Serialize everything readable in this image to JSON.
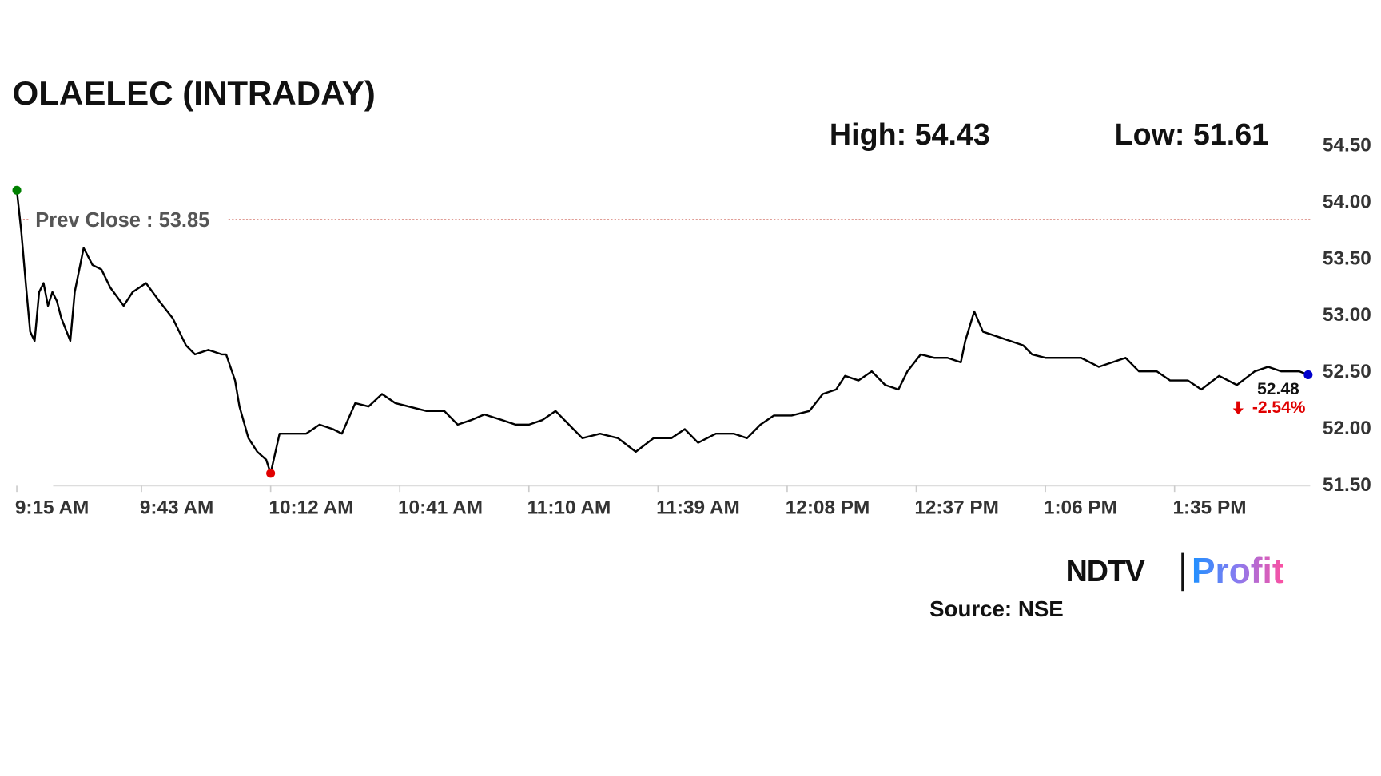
{
  "chart_data": {
    "type": "line",
    "title": "OLAELEC (INTRADAY)",
    "high_label": "High:",
    "high": 54.43,
    "low_label": "Low:",
    "low": 51.61,
    "prev_close_label": "Prev Close :",
    "prev_close": 53.85,
    "last_change": {
      "value": -2.54,
      "label": "-2.54%"
    },
    "x": [
      "9:15 AM",
      "9:16 AM",
      "9:17 AM",
      "9:18 AM",
      "9:19 AM",
      "9:20 AM",
      "9:21 AM",
      "9:22 AM",
      "9:23 AM",
      "9:24 AM",
      "9:25 AM",
      "9:27 AM",
      "9:28 AM",
      "9:30 AM",
      "9:32 AM",
      "9:34 AM",
      "9:36 AM",
      "9:39 AM",
      "9:41 AM",
      "9:44 AM",
      "9:47 AM",
      "9:50 AM",
      "9:53 AM",
      "9:55 AM",
      "9:58 AM",
      "10:01 AM",
      "10:02 AM",
      "10:04 AM",
      "10:05 AM",
      "10:07 AM",
      "10:09 AM",
      "10:11 AM",
      "10:12 AM",
      "10:14 AM",
      "10:17 AM",
      "10:20 AM",
      "10:23 AM",
      "10:26 AM",
      "10:28 AM",
      "10:31 AM",
      "10:34 AM",
      "10:37 AM",
      "10:40 AM",
      "10:43 AM",
      "10:47 AM",
      "10:51 AM",
      "10:54 AM",
      "10:57 AM",
      "11:00 AM",
      "11:04 AM",
      "11:07 AM",
      "11:10 AM",
      "11:13 AM",
      "11:16 AM",
      "11:19 AM",
      "11:22 AM",
      "11:26 AM",
      "11:30 AM",
      "11:34 AM",
      "11:38 AM",
      "11:42 AM",
      "11:45 AM",
      "11:48 AM",
      "11:52 AM",
      "11:56 AM",
      "11:59 AM",
      "12:02 PM",
      "12:05 PM",
      "12:09 PM",
      "12:13 PM",
      "12:16 PM",
      "12:19 PM",
      "12:21 PM",
      "12:24 PM",
      "12:27 PM",
      "12:30 PM",
      "12:33 PM",
      "12:35 PM",
      "12:38 PM",
      "12:41 PM",
      "12:44 PM",
      "12:47 PM",
      "12:48 PM",
      "12:50 PM",
      "12:52 PM",
      "12:55 PM",
      "12:58 PM",
      "1:01 PM",
      "1:03 PM",
      "1:06 PM",
      "1:10 PM",
      "1:14 PM",
      "1:18 PM",
      "1:21 PM",
      "1:24 PM",
      "1:27 PM",
      "1:31 PM",
      "1:34 PM",
      "1:38 PM",
      "1:41 PM",
      "1:45 PM",
      "1:49 PM",
      "1:53 PM",
      "1:56 PM",
      "1:59 PM",
      "2:03 PM",
      "2:05 PM"
    ],
    "series": [
      {
        "color": "#000000",
        "values": [
          54.11,
          53.75,
          53.29,
          52.86,
          52.78,
          53.21,
          53.29,
          53.09,
          53.21,
          53.13,
          52.98,
          52.78,
          53.21,
          53.6,
          53.45,
          53.41,
          53.25,
          53.09,
          53.21,
          53.29,
          53.13,
          52.98,
          52.74,
          52.66,
          52.7,
          52.66,
          52.66,
          52.43,
          52.2,
          51.92,
          51.8,
          51.73,
          51.61,
          51.96,
          51.96,
          51.96,
          52.04,
          52.0,
          51.96,
          52.23,
          52.2,
          52.31,
          52.23,
          52.2,
          52.16,
          52.16,
          52.04,
          52.08,
          52.13,
          52.08,
          52.04,
          52.04,
          52.08,
          52.16,
          52.04,
          51.92,
          51.96,
          51.92,
          51.8,
          51.92,
          51.92,
          52.0,
          51.88,
          51.96,
          51.96,
          51.92,
          52.04,
          52.12,
          52.12,
          52.16,
          52.31,
          52.35,
          52.47,
          52.43,
          52.51,
          52.39,
          52.35,
          52.51,
          52.66,
          52.63,
          52.63,
          52.59,
          52.78,
          53.04,
          52.86,
          52.82,
          52.78,
          52.74,
          52.66,
          52.63,
          52.63,
          52.63,
          52.55,
          52.59,
          52.63,
          52.51,
          52.51,
          52.43,
          52.43,
          52.35,
          52.47,
          52.39,
          52.51,
          52.55,
          52.51,
          52.51,
          52.48
        ]
      }
    ],
    "marker_colors": {
      "start": "#008000",
      "low": "#e00000",
      "end": "#0000cc"
    },
    "prev_close_color": "#c0392b",
    "change_color": "#e00000",
    "xticks": [
      "9:15 AM",
      "9:43 AM",
      "10:12 AM",
      "10:41 AM",
      "11:10 AM",
      "11:39 AM",
      "12:08 PM",
      "12:37 PM",
      "1:06 PM",
      "1:35 PM"
    ],
    "ylim": [
      51.5,
      54.5
    ],
    "yticks": [
      {
        "value": 51.5,
        "label": "51.50"
      },
      {
        "value": 52,
        "label": "52.00"
      },
      {
        "value": 52.5,
        "label": "52.50"
      },
      {
        "value": 53,
        "label": "53.00"
      },
      {
        "value": 53.5,
        "label": "53.50"
      },
      {
        "value": 54,
        "label": "54.00"
      },
      {
        "value": 54.5,
        "label": "54.50"
      }
    ],
    "logo": [
      "NDTV",
      "Profit"
    ],
    "source": "Source: NSE"
  }
}
